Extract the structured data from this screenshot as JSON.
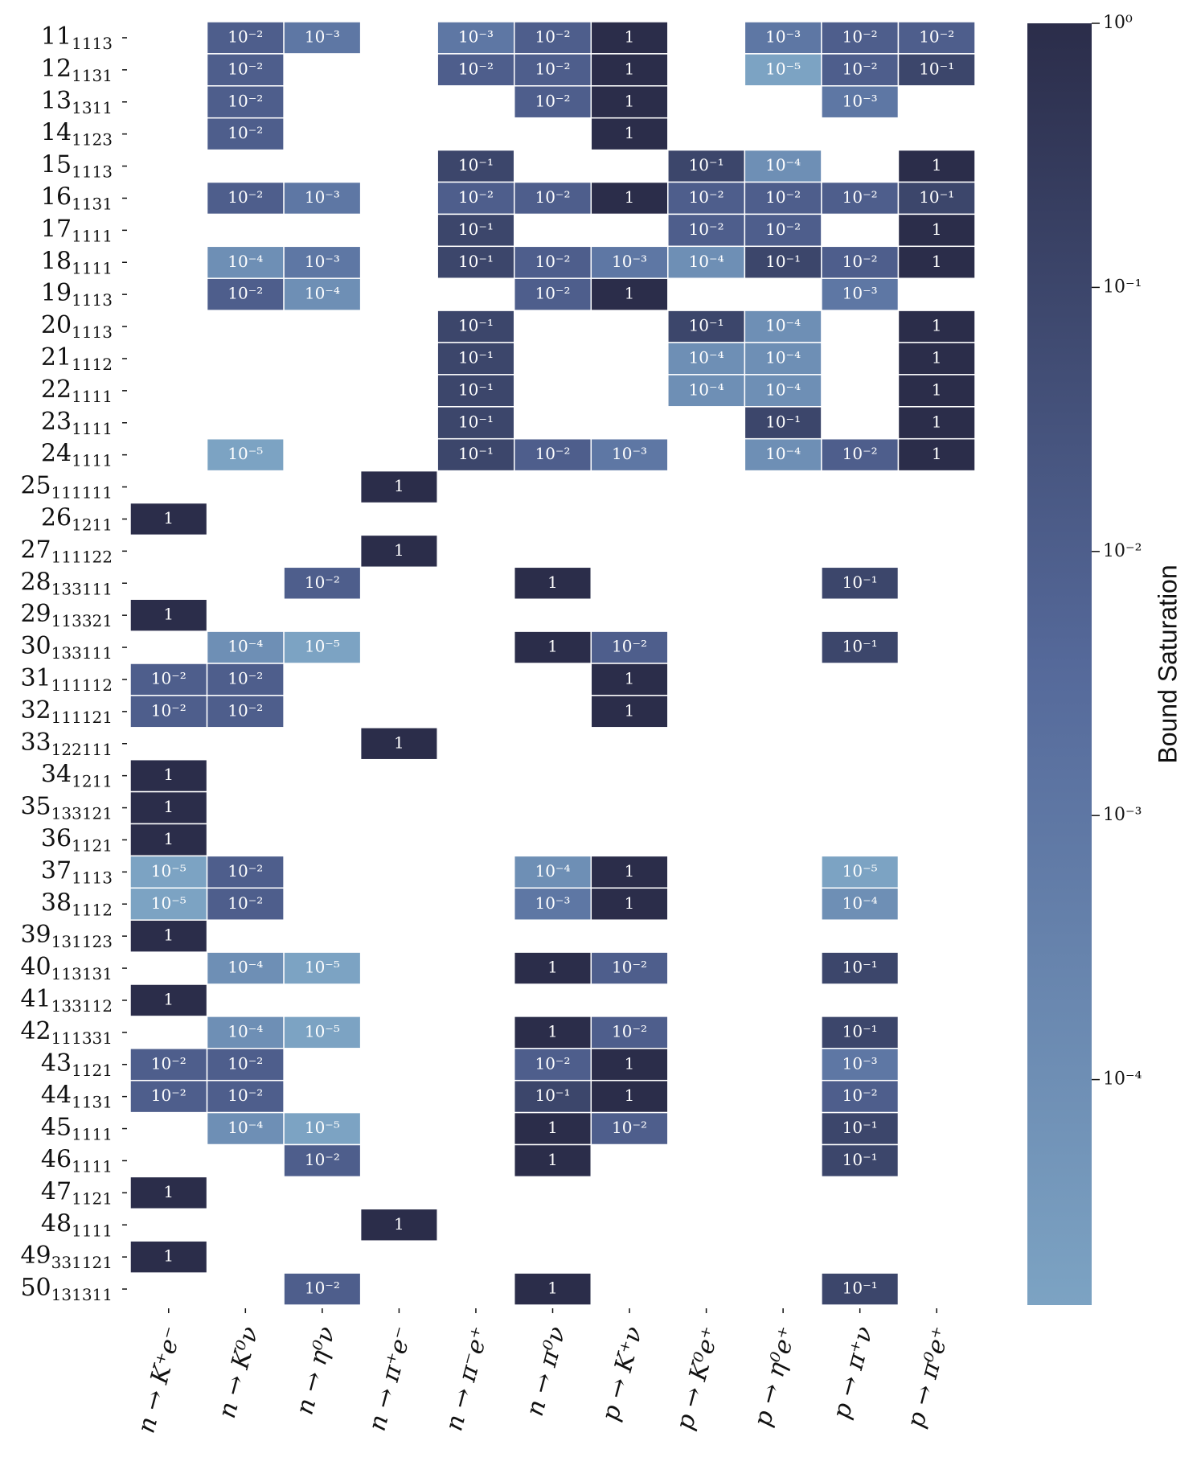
{
  "chart_data": {
    "type": "heatmap",
    "colorbar_label": "Bound Saturation",
    "x": [
      "n → K⁺e⁻",
      "n → K⁰ν",
      "n → η⁰ν",
      "n → π⁺e⁻",
      "n → π⁻e⁺",
      "n → π⁰ν",
      "p → K⁺ν",
      "p → K⁰e⁺",
      "p → η⁰e⁺",
      "p → π⁺ν",
      "p → π⁰e⁺"
    ],
    "y": [
      {
        "main": "11",
        "sub": "1113"
      },
      {
        "main": "12",
        "sub": "1131"
      },
      {
        "main": "13",
        "sub": "1311"
      },
      {
        "main": "14",
        "sub": "1123"
      },
      {
        "main": "15",
        "sub": "1113"
      },
      {
        "main": "16",
        "sub": "1131"
      },
      {
        "main": "17",
        "sub": "1111"
      },
      {
        "main": "18",
        "sub": "1111"
      },
      {
        "main": "19",
        "sub": "1113"
      },
      {
        "main": "20",
        "sub": "1113"
      },
      {
        "main": "21",
        "sub": "1112"
      },
      {
        "main": "22",
        "sub": "1111"
      },
      {
        "main": "23",
        "sub": "1111"
      },
      {
        "main": "24",
        "sub": "1111"
      },
      {
        "main": "25",
        "sub": "111111"
      },
      {
        "main": "26",
        "sub": "1211"
      },
      {
        "main": "27",
        "sub": "111122"
      },
      {
        "main": "28",
        "sub": "133111"
      },
      {
        "main": "29",
        "sub": "113321"
      },
      {
        "main": "30",
        "sub": "133111"
      },
      {
        "main": "31",
        "sub": "111112"
      },
      {
        "main": "32",
        "sub": "111121"
      },
      {
        "main": "33",
        "sub": "122111"
      },
      {
        "main": "34",
        "sub": "1211"
      },
      {
        "main": "35",
        "sub": "133121"
      },
      {
        "main": "36",
        "sub": "1121"
      },
      {
        "main": "37",
        "sub": "1113"
      },
      {
        "main": "38",
        "sub": "1112"
      },
      {
        "main": "39",
        "sub": "131123"
      },
      {
        "main": "40",
        "sub": "113131"
      },
      {
        "main": "41",
        "sub": "133112"
      },
      {
        "main": "42",
        "sub": "111331"
      },
      {
        "main": "43",
        "sub": "1121"
      },
      {
        "main": "44",
        "sub": "1131"
      },
      {
        "main": "45",
        "sub": "1111"
      },
      {
        "main": "46",
        "sub": "1111"
      },
      {
        "main": "47",
        "sub": "1121"
      },
      {
        "main": "48",
        "sub": "1111"
      },
      {
        "main": "49",
        "sub": "331121"
      },
      {
        "main": "50",
        "sub": "131311"
      }
    ],
    "values": [
      [
        null,
        0.01,
        0.001,
        null,
        0.001,
        0.01,
        1,
        null,
        0.001,
        0.01,
        0.01
      ],
      [
        null,
        0.01,
        null,
        null,
        0.01,
        0.01,
        1,
        null,
        1e-05,
        0.01,
        0.1
      ],
      [
        null,
        0.01,
        null,
        null,
        null,
        0.01,
        1,
        null,
        null,
        0.001,
        null
      ],
      [
        null,
        0.01,
        null,
        null,
        null,
        null,
        1,
        null,
        null,
        null,
        null
      ],
      [
        null,
        null,
        null,
        null,
        0.1,
        null,
        null,
        0.1,
        0.0001,
        null,
        1
      ],
      [
        null,
        0.01,
        0.001,
        null,
        0.01,
        0.01,
        1,
        0.01,
        0.01,
        0.01,
        0.1
      ],
      [
        null,
        null,
        null,
        null,
        0.1,
        null,
        null,
        0.01,
        0.01,
        null,
        1
      ],
      [
        null,
        0.0001,
        0.001,
        null,
        0.1,
        0.01,
        0.001,
        0.0001,
        0.1,
        0.01,
        1
      ],
      [
        null,
        0.01,
        0.0001,
        null,
        null,
        0.01,
        1,
        null,
        null,
        0.001,
        null
      ],
      [
        null,
        null,
        null,
        null,
        0.1,
        null,
        null,
        0.1,
        0.0001,
        null,
        1
      ],
      [
        null,
        null,
        null,
        null,
        0.1,
        null,
        null,
        0.0001,
        0.0001,
        null,
        1
      ],
      [
        null,
        null,
        null,
        null,
        0.1,
        null,
        null,
        0.0001,
        0.0001,
        null,
        1
      ],
      [
        null,
        null,
        null,
        null,
        0.1,
        null,
        null,
        null,
        0.1,
        null,
        1
      ],
      [
        null,
        1e-05,
        null,
        null,
        0.1,
        0.01,
        0.001,
        null,
        0.0001,
        0.01,
        1
      ],
      [
        null,
        null,
        null,
        1,
        null,
        null,
        null,
        null,
        null,
        null,
        null
      ],
      [
        1,
        null,
        null,
        null,
        null,
        null,
        null,
        null,
        null,
        null,
        null
      ],
      [
        null,
        null,
        null,
        1,
        null,
        null,
        null,
        null,
        null,
        null,
        null
      ],
      [
        null,
        null,
        0.01,
        null,
        null,
        1,
        null,
        null,
        null,
        0.1,
        null
      ],
      [
        1,
        null,
        null,
        null,
        null,
        null,
        null,
        null,
        null,
        null,
        null
      ],
      [
        null,
        0.0001,
        1e-05,
        null,
        null,
        1,
        0.01,
        null,
        null,
        0.1,
        null
      ],
      [
        0.01,
        0.01,
        null,
        null,
        null,
        null,
        1,
        null,
        null,
        null,
        null
      ],
      [
        0.01,
        0.01,
        null,
        null,
        null,
        null,
        1,
        null,
        null,
        null,
        null
      ],
      [
        null,
        null,
        null,
        1,
        null,
        null,
        null,
        null,
        null,
        null,
        null
      ],
      [
        1,
        null,
        null,
        null,
        null,
        null,
        null,
        null,
        null,
        null,
        null
      ],
      [
        1,
        null,
        null,
        null,
        null,
        null,
        null,
        null,
        null,
        null,
        null
      ],
      [
        1,
        null,
        null,
        null,
        null,
        null,
        null,
        null,
        null,
        null,
        null
      ],
      [
        1e-05,
        0.01,
        null,
        null,
        null,
        0.0001,
        1,
        null,
        null,
        1e-05,
        null
      ],
      [
        1e-05,
        0.01,
        null,
        null,
        null,
        0.001,
        1,
        null,
        null,
        0.0001,
        null
      ],
      [
        1,
        null,
        null,
        null,
        null,
        null,
        null,
        null,
        null,
        null,
        null
      ],
      [
        null,
        0.0001,
        1e-05,
        null,
        null,
        1,
        0.01,
        null,
        null,
        0.1,
        null
      ],
      [
        1,
        null,
        null,
        null,
        null,
        null,
        null,
        null,
        null,
        null,
        null
      ],
      [
        null,
        0.0001,
        1e-05,
        null,
        null,
        1,
        0.01,
        null,
        null,
        0.1,
        null
      ],
      [
        0.01,
        0.01,
        null,
        null,
        null,
        0.01,
        1,
        null,
        null,
        0.001,
        null
      ],
      [
        0.01,
        0.01,
        null,
        null,
        null,
        0.1,
        1,
        null,
        null,
        0.01,
        null
      ],
      [
        null,
        0.0001,
        1e-05,
        null,
        null,
        1,
        0.01,
        null,
        null,
        0.1,
        null
      ],
      [
        null,
        null,
        0.01,
        null,
        null,
        1,
        null,
        null,
        null,
        0.1,
        null
      ],
      [
        1,
        null,
        null,
        null,
        null,
        null,
        null,
        null,
        null,
        null,
        null
      ],
      [
        null,
        null,
        null,
        1,
        null,
        null,
        null,
        null,
        null,
        null,
        null
      ],
      [
        1,
        null,
        null,
        null,
        null,
        null,
        null,
        null,
        null,
        null,
        null
      ],
      [
        null,
        null,
        0.01,
        null,
        null,
        1,
        null,
        null,
        null,
        0.1,
        null
      ]
    ],
    "value_labels": [
      [
        null,
        "10⁻²",
        "10⁻³",
        null,
        "10⁻³",
        "10⁻²",
        "1",
        null,
        "10⁻³",
        "10⁻²",
        "10⁻²"
      ],
      [
        null,
        "10⁻²",
        null,
        null,
        "10⁻²",
        "10⁻²",
        "1",
        null,
        "10⁻⁵",
        "10⁻²",
        "10⁻¹"
      ],
      [
        null,
        "10⁻²",
        null,
        null,
        null,
        "10⁻²",
        "1",
        null,
        null,
        "10⁻³",
        null
      ],
      [
        null,
        "10⁻²",
        null,
        null,
        null,
        null,
        "1",
        null,
        null,
        null,
        null
      ],
      [
        null,
        null,
        null,
        null,
        "10⁻¹",
        null,
        null,
        "10⁻¹",
        "10⁻⁴",
        null,
        "1"
      ],
      [
        null,
        "10⁻²",
        "10⁻³",
        null,
        "10⁻²",
        "10⁻²",
        "1",
        "10⁻²",
        "10⁻²",
        "10⁻²",
        "10⁻¹"
      ],
      [
        null,
        null,
        null,
        null,
        "10⁻¹",
        null,
        null,
        "10⁻²",
        "10⁻²",
        null,
        "1"
      ],
      [
        null,
        "10⁻⁴",
        "10⁻³",
        null,
        "10⁻¹",
        "10⁻²",
        "10⁻³",
        "10⁻⁴",
        "10⁻¹",
        "10⁻²",
        "1"
      ],
      [
        null,
        "10⁻²",
        "10⁻⁴",
        null,
        null,
        "10⁻²",
        "1",
        null,
        null,
        "10⁻³",
        null
      ],
      [
        null,
        null,
        null,
        null,
        "10⁻¹",
        null,
        null,
        "10⁻¹",
        "10⁻⁴",
        null,
        "1"
      ],
      [
        null,
        null,
        null,
        null,
        "10⁻¹",
        null,
        null,
        "10⁻⁴",
        "10⁻⁴",
        null,
        "1"
      ],
      [
        null,
        null,
        null,
        null,
        "10⁻¹",
        null,
        null,
        "10⁻⁴",
        "10⁻⁴",
        null,
        "1"
      ],
      [
        null,
        null,
        null,
        null,
        "10⁻¹",
        null,
        null,
        null,
        "10⁻¹",
        null,
        "1"
      ],
      [
        null,
        "10⁻⁵",
        null,
        null,
        "10⁻¹",
        "10⁻²",
        "10⁻³",
        null,
        "10⁻⁴",
        "10⁻²",
        "1"
      ],
      [
        null,
        null,
        null,
        "1",
        null,
        null,
        null,
        null,
        null,
        null,
        null
      ],
      [
        "1",
        null,
        null,
        null,
        null,
        null,
        null,
        null,
        null,
        null,
        null
      ],
      [
        null,
        null,
        null,
        "1",
        null,
        null,
        null,
        null,
        null,
        null,
        null
      ],
      [
        null,
        null,
        "10⁻²",
        null,
        null,
        "1",
        null,
        null,
        null,
        "10⁻¹",
        null
      ],
      [
        "1",
        null,
        null,
        null,
        null,
        null,
        null,
        null,
        null,
        null,
        null
      ],
      [
        null,
        "10⁻⁴",
        "10⁻⁵",
        null,
        null,
        "1",
        "10⁻²",
        null,
        null,
        "10⁻¹",
        null
      ],
      [
        "10⁻²",
        "10⁻²",
        null,
        null,
        null,
        null,
        "1",
        null,
        null,
        null,
        null
      ],
      [
        "10⁻²",
        "10⁻²",
        null,
        null,
        null,
        null,
        "1",
        null,
        null,
        null,
        null
      ],
      [
        null,
        null,
        null,
        "1",
        null,
        null,
        null,
        null,
        null,
        null,
        null
      ],
      [
        "1",
        null,
        null,
        null,
        null,
        null,
        null,
        null,
        null,
        null,
        null
      ],
      [
        "1",
        null,
        null,
        null,
        null,
        null,
        null,
        null,
        null,
        null,
        null
      ],
      [
        "1",
        null,
        null,
        null,
        null,
        null,
        null,
        null,
        null,
        null,
        null
      ],
      [
        "10⁻⁵",
        "10⁻²",
        null,
        null,
        null,
        "10⁻⁴",
        "1",
        null,
        null,
        "10⁻⁵",
        null
      ],
      [
        "10⁻⁵",
        "10⁻²",
        null,
        null,
        null,
        "10⁻³",
        "1",
        null,
        null,
        "10⁻⁴",
        null
      ],
      [
        "1",
        null,
        null,
        null,
        null,
        null,
        null,
        null,
        null,
        null,
        null
      ],
      [
        null,
        "10⁻⁴",
        "10⁻⁵",
        null,
        null,
        "1",
        "10⁻²",
        null,
        null,
        "10⁻¹",
        null
      ],
      [
        "1",
        null,
        null,
        null,
        null,
        null,
        null,
        null,
        null,
        null,
        null
      ],
      [
        null,
        "10⁻⁴",
        "10⁻⁵",
        null,
        null,
        "1",
        "10⁻²",
        null,
        null,
        "10⁻¹",
        null
      ],
      [
        "10⁻²",
        "10⁻²",
        null,
        null,
        null,
        "10⁻²",
        "1",
        null,
        null,
        "10⁻³",
        null
      ],
      [
        "10⁻²",
        "10⁻²",
        null,
        null,
        null,
        "10⁻¹",
        "1",
        null,
        null,
        "10⁻²",
        null
      ],
      [
        null,
        "10⁻⁴",
        "10⁻⁵",
        null,
        null,
        "1",
        "10⁻²",
        null,
        null,
        "10⁻¹",
        null
      ],
      [
        null,
        null,
        "10⁻²",
        null,
        null,
        "1",
        null,
        null,
        null,
        "10⁻¹",
        null
      ],
      [
        "1",
        null,
        null,
        null,
        null,
        null,
        null,
        null,
        null,
        null,
        null
      ],
      [
        null,
        null,
        null,
        "1",
        null,
        null,
        null,
        null,
        null,
        null,
        null
      ],
      [
        "1",
        null,
        null,
        null,
        null,
        null,
        null,
        null,
        null,
        null,
        null
      ],
      [
        null,
        null,
        "10⁻²",
        null,
        null,
        "1",
        null,
        null,
        null,
        "10⁻¹",
        null
      ]
    ],
    "clim": [
      1.4e-05,
      1
    ],
    "log_scale": true,
    "cticks": [
      {
        "value": 1,
        "label": "10⁰"
      },
      {
        "value": 0.1,
        "label": "10⁻¹"
      },
      {
        "value": 0.01,
        "label": "10⁻²"
      },
      {
        "value": 0.001,
        "label": "10⁻³"
      },
      {
        "value": 0.0001,
        "label": "10⁻⁴"
      }
    ],
    "colormap": [
      "#7ca3c3",
      "#55699a",
      "#2b2d4a"
    ]
  }
}
